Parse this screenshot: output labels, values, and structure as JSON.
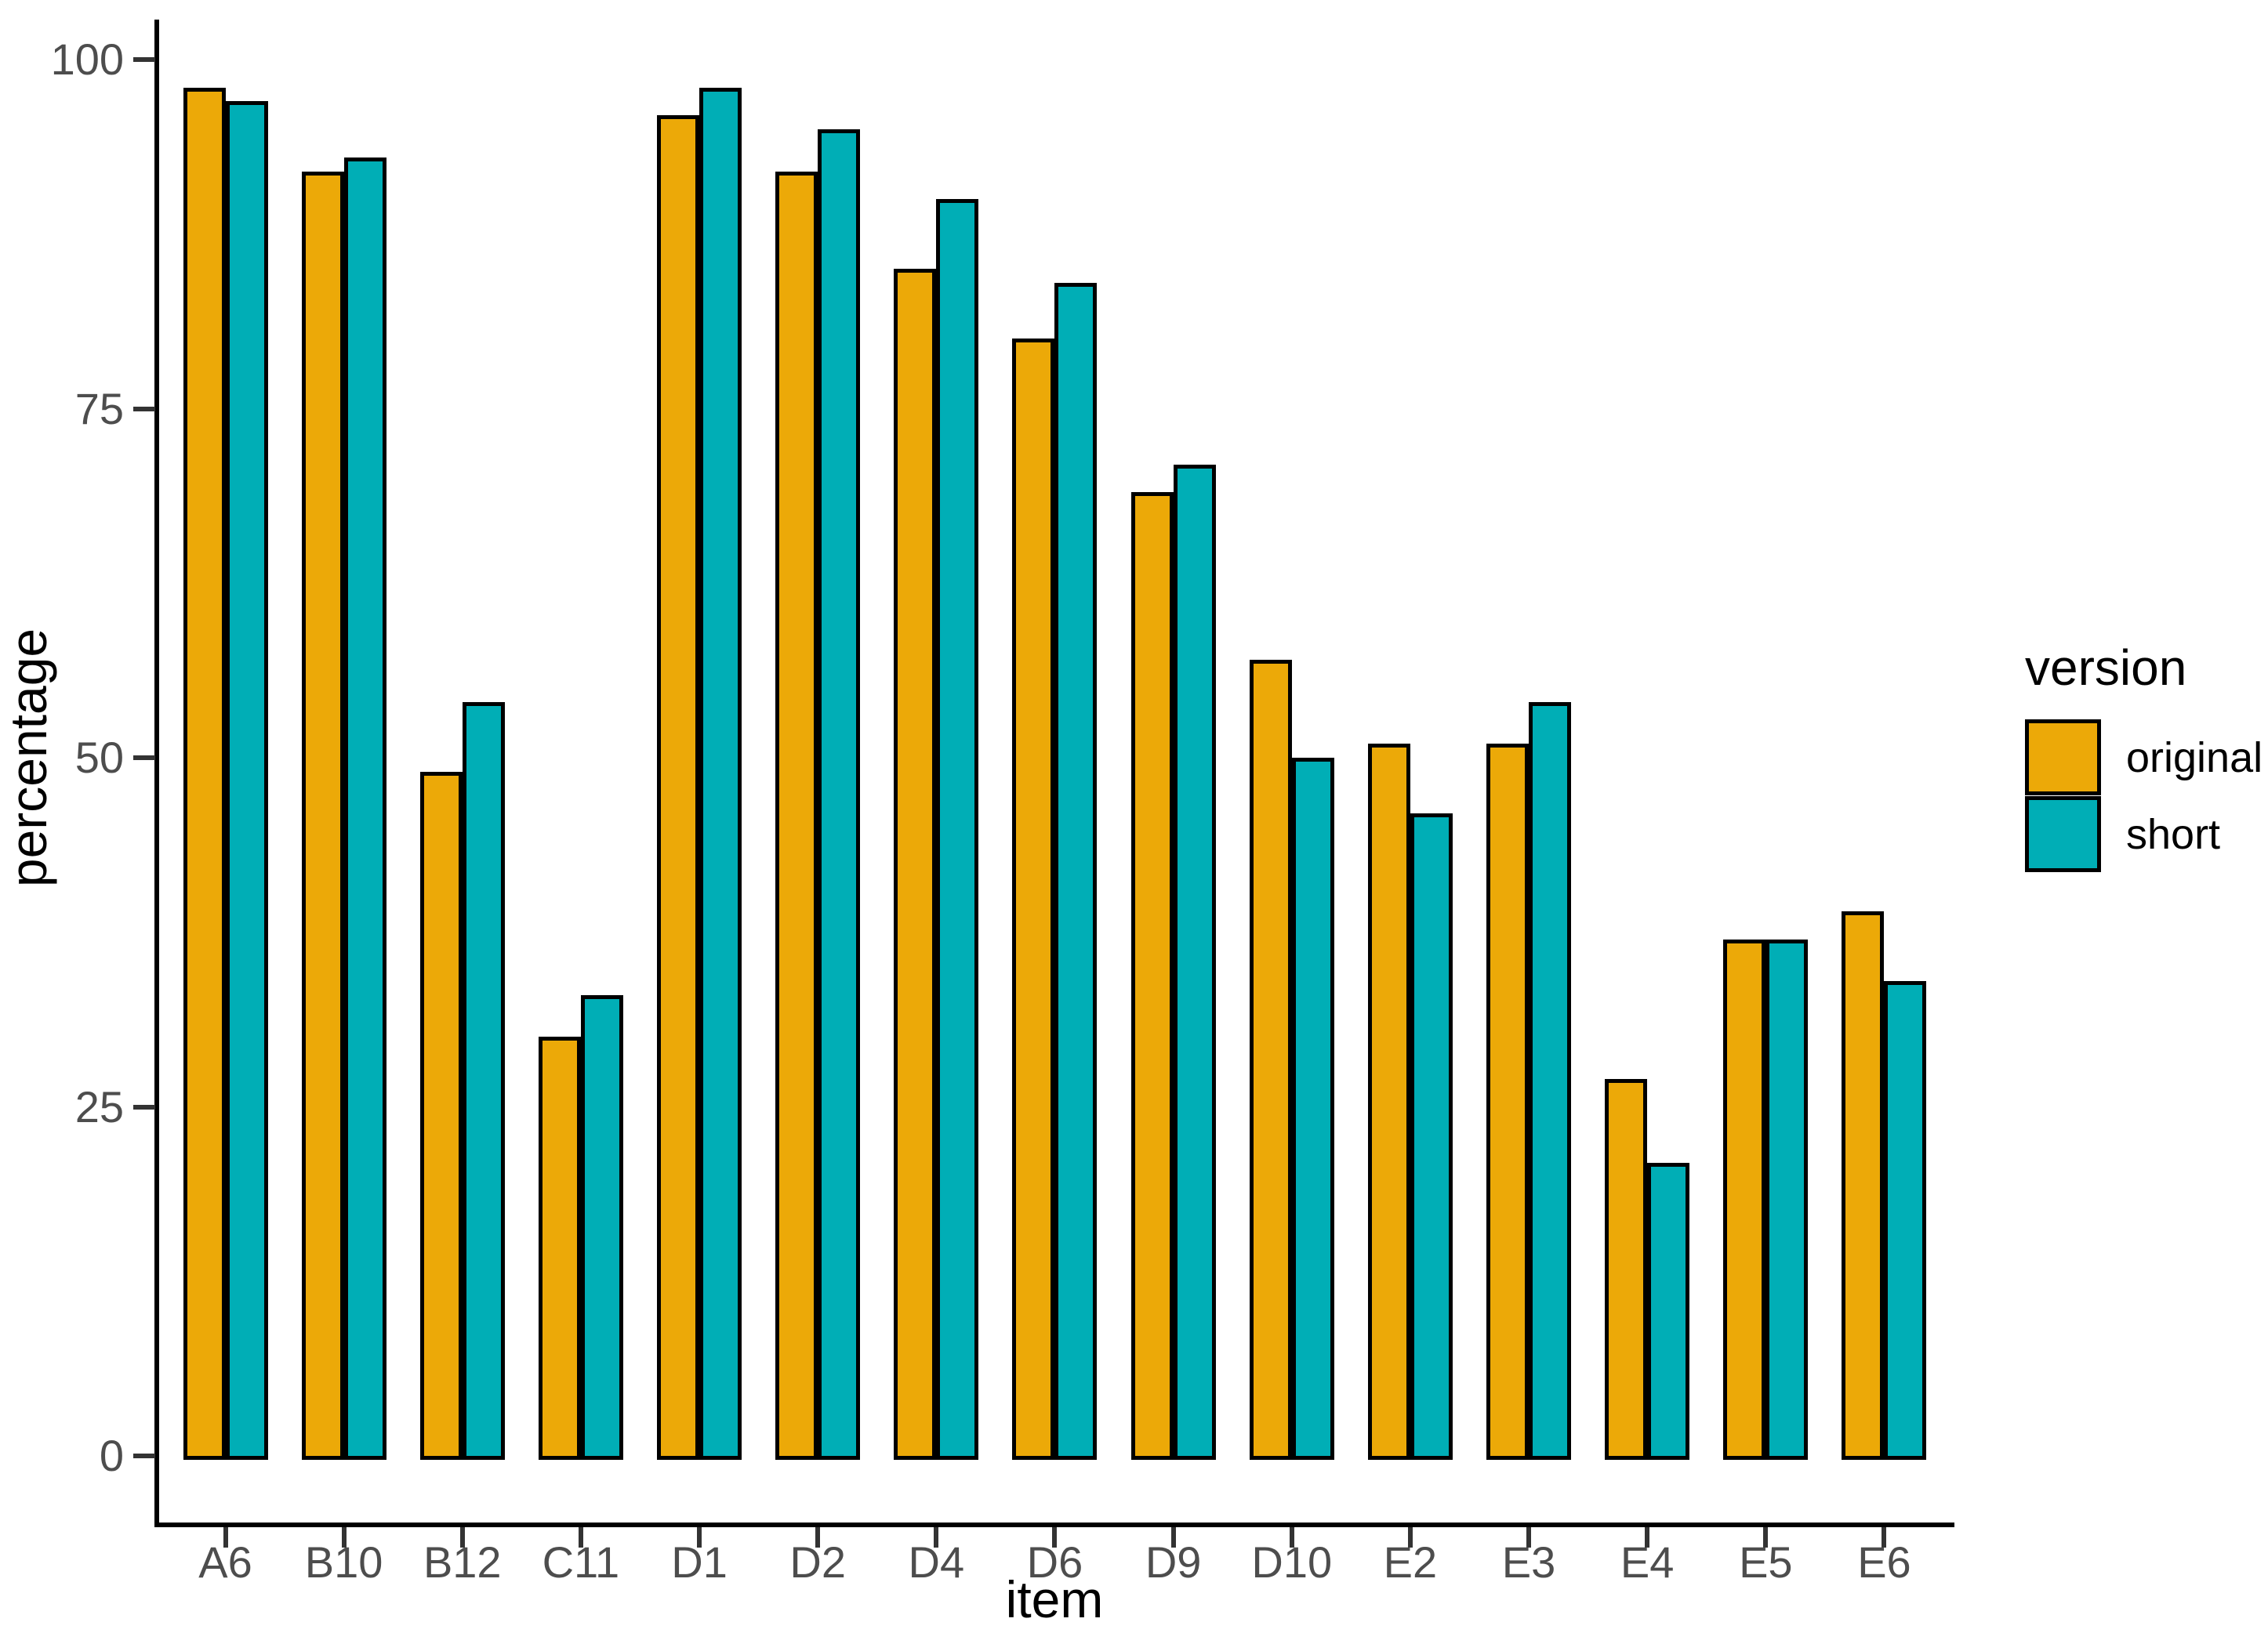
{
  "chart_data": {
    "type": "bar",
    "title": "",
    "xlabel": "item",
    "ylabel": "percentage",
    "categories": [
      "A6",
      "B10",
      "B12",
      "C11",
      "D1",
      "D2",
      "D4",
      "D6",
      "D9",
      "D10",
      "E2",
      "E3",
      "E4",
      "E5",
      "E6"
    ],
    "series": [
      {
        "name": "original",
        "color": "#ECA908",
        "values": [
          98,
          92,
          49,
          30,
          96,
          92,
          85,
          80,
          69,
          57,
          51,
          51,
          27,
          37,
          39
        ]
      },
      {
        "name": "short",
        "color": "#00AEB6",
        "values": [
          97,
          93,
          54,
          33,
          98,
          95,
          90,
          84,
          71,
          50,
          46,
          54,
          21,
          37,
          34
        ]
      }
    ],
    "ylim": [
      0,
      100
    ],
    "yticks": [
      0,
      25,
      50,
      75,
      100
    ],
    "grid": false,
    "bar_border_color": "#000000",
    "legend_position": "right",
    "legend_title": "version"
  },
  "colors": {
    "axis_line": "#000000",
    "tick_mark": "#333333",
    "tick_label": "#4d4d4d",
    "background": "#ffffff"
  }
}
